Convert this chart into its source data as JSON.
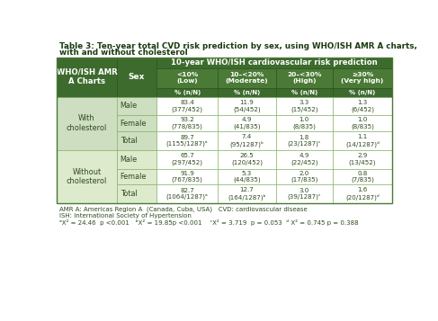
{
  "title_line1": "Table 3: Ten-year total CVD risk prediction by sex, using WHO/ISH AMR A charts,",
  "title_line2": "with and without cholesterol",
  "header_col1": "WHO/ISH AMR\nA Charts",
  "header_col2": "Sex",
  "header_top": "10-year WHO/ISH cardiovascular risk prediction",
  "sub_headers": [
    "<10%\n(Low)",
    "10–<20%\n(Moderate)",
    "20–<30%\n(High)",
    "≥30%\n(Very high)"
  ],
  "rows": [
    {
      "sex": "Male",
      "v1": "83.4\n(377/452)",
      "v2": "11.9\n(54/452)",
      "v3": "3.3\n(15/452)",
      "v4": "1.3\n(6/452)"
    },
    {
      "sex": "Female",
      "v1": "93.2\n(778/835)",
      "v2": "4.9\n(41/835)",
      "v3": "1.0\n(8/835)",
      "v4": "1.0\n(8/835)"
    },
    {
      "sex": "Total",
      "v1": "89.7\n(1155/1287)ᵃ",
      "v2": "7.4\n(95/1287)ᵇ",
      "v3": "1.8\n(23/1287)ᶜ",
      "v4": "1.1\n(14/1287)ᵈ"
    },
    {
      "sex": "Male",
      "v1": "65.7\n(297/452)",
      "v2": "26.5\n(120/452)",
      "v3": "4.9\n(22/452)",
      "v4": "2.9\n(13/452)"
    },
    {
      "sex": "Female",
      "v1": "91.9\n(767/835)",
      "v2": "5.3\n(44/835)",
      "v3": "2.0\n(17/835)",
      "v4": "0.8\n(7/835)"
    },
    {
      "sex": "Total",
      "v1": "82.7\n(1064/1287)ᵃ",
      "v2": "12.7\n(164/1287)ᵇ",
      "v3": "3.0\n(39/1287)ᶜ",
      "v4": "1.6\n(20/1287)ᵈ"
    }
  ],
  "group_labels": [
    "With\ncholesterol",
    "Without\ncholesterol"
  ],
  "footnotes": [
    "AMR A: Americas Region A  (Canada, Cuba, USA)   CVD: cardiovascular disease",
    "ISH: International Society of Hypertension",
    "ᵃX² = 24.46  p <0.001   ᵇX² = 19.85p <0.001    ᶜX² = 3.719  p = 0.053  ᵈ X² = 0.745 p = 0.388"
  ],
  "dark_green": "#3d6b2e",
  "medium_green_header": "#4a7a35",
  "light_green_row1": "#cddfc0",
  "light_green_row2": "#ddeacc",
  "white": "#ffffff",
  "header_text_color": "#ffffff",
  "body_text_color": "#2d4a1e",
  "title_color": "#1a3a10",
  "border_color": "#7aaa5a"
}
